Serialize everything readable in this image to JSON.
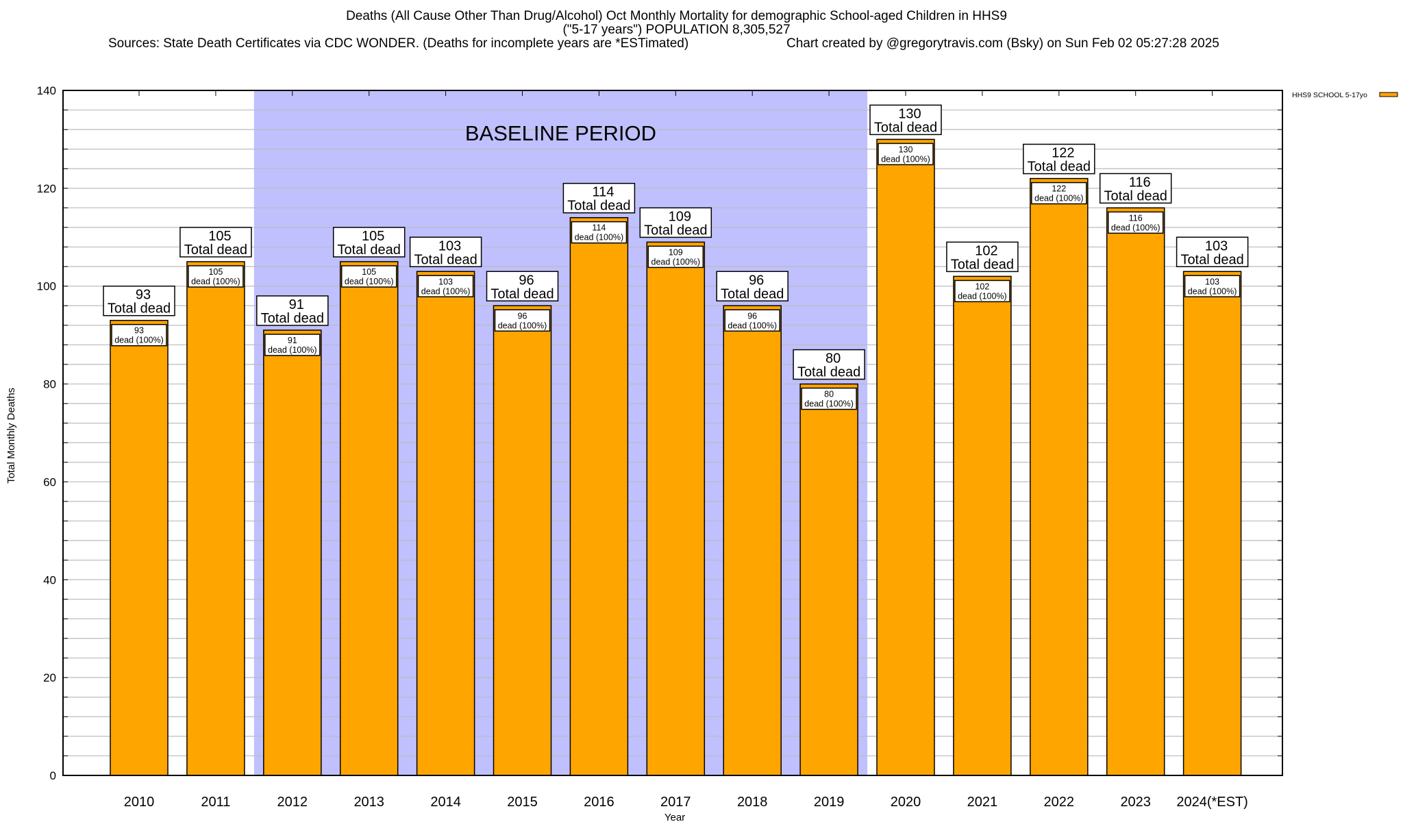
{
  "title": {
    "line1": "Deaths (All Cause Other Than Drug/Alcohol) Oct Monthly Mortality for demographic School-aged Children in HHS9",
    "line2": "(\"5-17 years\") POPULATION 8,305,527",
    "sources": "Sources: State Death Certificates via CDC WONDER. (Deaths for incomplete years are *ESTimated)",
    "credit": "Chart created by @gregorytravis.com (Bsky) on Sun Feb 02 05:27:28 2025"
  },
  "chart_data": {
    "type": "bar",
    "xlabel": "Year",
    "ylabel": "Total Monthly Deaths",
    "ylim": [
      0,
      140
    ],
    "yticks": [
      0,
      20,
      40,
      60,
      80,
      100,
      120,
      140
    ],
    "grid": "horizontal every 4",
    "legend_placement": "top-right outside",
    "categories": [
      "2010",
      "2011",
      "2012",
      "2013",
      "2014",
      "2015",
      "2016",
      "2017",
      "2018",
      "2019",
      "2020",
      "2021",
      "2022",
      "2023",
      "2024(*EST)"
    ],
    "series": [
      {
        "name": "HHS9 SCHOOL 5-17yo",
        "color": "#ffa500",
        "values": [
          93,
          105,
          91,
          105,
          103,
          96,
          114,
          109,
          96,
          80,
          130,
          102,
          122,
          116,
          103
        ]
      }
    ],
    "total_label": "Total dead",
    "inner_label": "dead (100%)",
    "annotation": {
      "text": "BASELINE PERIOD",
      "from": "2012",
      "to": "2019",
      "color": "#c0c0ff"
    }
  }
}
